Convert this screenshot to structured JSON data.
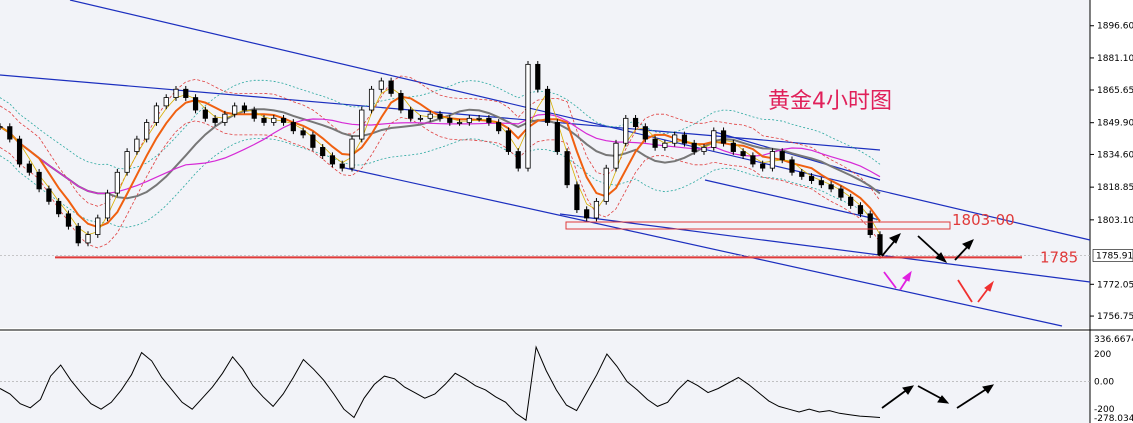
{
  "chart_data": [
    {
      "type": "line",
      "title": "黄金4小时图",
      "y_ticks": [
        "1896.60",
        "1881.10",
        "1865.65",
        "1849.90",
        "1834.60",
        "1818.85",
        "1803.10",
        "1785.91",
        "1772.05",
        "1756.75"
      ],
      "ylim": [
        1751,
        1909
      ],
      "last_price": "1785.91",
      "annotations": [
        {
          "label": "1803-00",
          "value": 1803
        },
        {
          "label": "1785",
          "value": 1785
        }
      ],
      "series": [
        {
          "values": [
            1848,
            1842,
            1830,
            1826,
            1818,
            1812,
            1806,
            1800,
            1792,
            1796,
            1804,
            1816,
            1826,
            1836,
            1842,
            1850,
            1858,
            1862,
            1866,
            1862,
            1856,
            1852,
            1850,
            1854,
            1858,
            1856,
            1852,
            1850,
            1852,
            1850,
            1846,
            1844,
            1838,
            1834,
            1830,
            1828,
            1842,
            1856,
            1866,
            1870,
            1864,
            1856,
            1852,
            1852,
            1854,
            1852,
            1850,
            1850,
            1852,
            1852,
            1850,
            1846,
            1836,
            1828,
            1878,
            1866,
            1850,
            1836,
            1820,
            1808,
            1804,
            1812,
            1828,
            1840,
            1852,
            1848,
            1842,
            1838,
            1840,
            1844,
            1840,
            1836,
            1838,
            1846,
            1840,
            1836,
            1834,
            1830,
            1828,
            1836,
            1832,
            1826,
            1824,
            1822,
            1820,
            1818,
            1814,
            1810,
            1806,
            1796,
            1786
          ]
        }
      ]
    },
    {
      "type": "line",
      "y_ticks": [
        "336.6674",
        "200",
        "0.00",
        "-200",
        "-278.034"
      ],
      "ylim": [
        -300,
        345
      ],
      "series": [
        {
          "values": [
            -50,
            -90,
            -160,
            -190,
            -130,
            40,
            120,
            10,
            -80,
            -160,
            -200,
            -150,
            -60,
            50,
            210,
            150,
            30,
            -60,
            -150,
            -200,
            -120,
            -40,
            60,
            180,
            90,
            -30,
            -110,
            -180,
            -90,
            30,
            160,
            90,
            10,
            -90,
            -200,
            -260,
            -120,
            -20,
            40,
            20,
            -40,
            -80,
            -120,
            -90,
            -20,
            60,
            20,
            -30,
            -60,
            -110,
            -150,
            -230,
            -280,
            250,
            80,
            -60,
            -170,
            -210,
            -80,
            50,
            200,
            110,
            0,
            -60,
            -130,
            -180,
            -150,
            -60,
            10,
            -30,
            -80,
            -50,
            -10,
            30,
            -20,
            -80,
            -140,
            -180,
            -200,
            -220,
            -200,
            -220,
            -210,
            -230,
            -240,
            -250,
            -255,
            -260
          ]
        }
      ]
    }
  ]
}
